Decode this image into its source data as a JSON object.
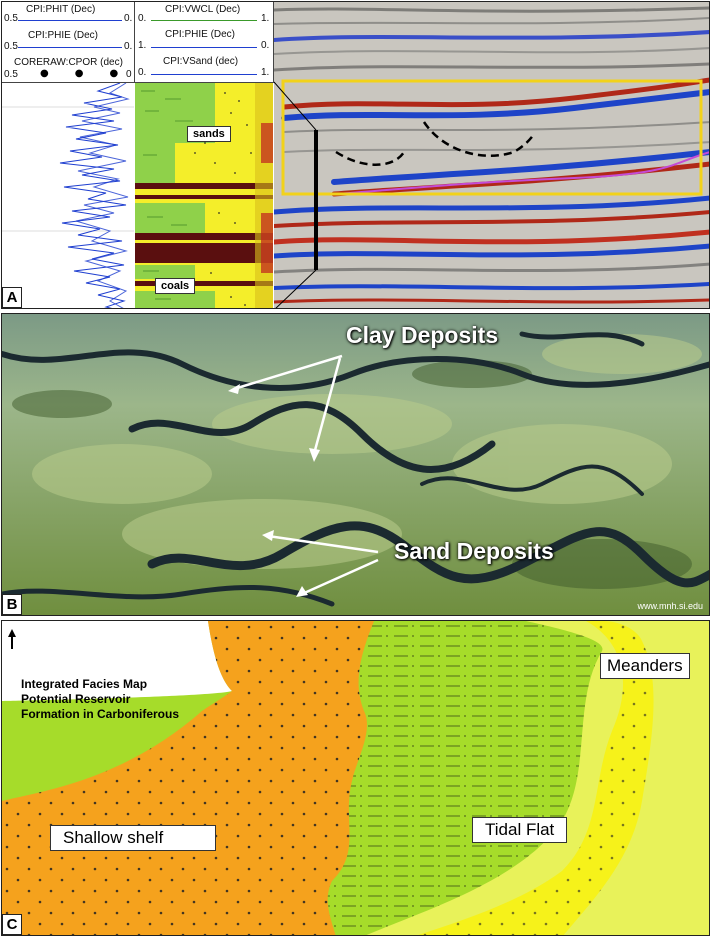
{
  "panel_a": {
    "letter": "A",
    "log_track_1": {
      "curves": [
        {
          "name": "CPI:PHIT (Dec)",
          "left": "0.5",
          "right": "0.",
          "color": "#1f3fd0"
        },
        {
          "name": "CPI:PHIE (Dec)",
          "left": "0.5",
          "right": "0.",
          "color": "#1f3fd0"
        },
        {
          "name": "CORERAW:CPOR (dec)",
          "left": "0.5",
          "right": "0",
          "color": "#000000"
        }
      ]
    },
    "log_track_2": {
      "curves": [
        {
          "name": "CPI:VWCL (Dec)",
          "left": "0.",
          "right": "1.",
          "color": "#3a9a2a"
        },
        {
          "name": "CPI:PHIE (Dec)",
          "left": "1.",
          "right": "0.",
          "color": "#1f3fd0"
        },
        {
          "name": "CPI:VSand (dec)",
          "left": "0.",
          "right": "1.",
          "color": "#1f3fd0"
        }
      ],
      "callouts": {
        "sands": "sands",
        "coals": "coals"
      }
    },
    "colors": {
      "sand": "#f4ee2a",
      "clay": "#8fd14a",
      "coal": "#5a0f0f",
      "highlight_box": "#f2d21a",
      "horizon": "#c44bd6"
    }
  },
  "panel_b": {
    "letter": "B",
    "labels": {
      "clay": "Clay Deposits",
      "sand": "Sand Deposits"
    },
    "credit": "www.mnh.si.edu"
  },
  "panel_c": {
    "letter": "C",
    "title_lines": [
      "Integrated Facies Map",
      "Potential Reservoir",
      "Formation in Carboniferous"
    ],
    "facies": {
      "shelf": "Shallow shelf",
      "tidal": "Tidal Flat",
      "meanders": "Meanders"
    },
    "colors": {
      "shelf": "#f5a21d",
      "tidal": "#a6dc2a",
      "meander_outer": "#e8f25a",
      "meander_inner": "#f6f21a"
    }
  }
}
